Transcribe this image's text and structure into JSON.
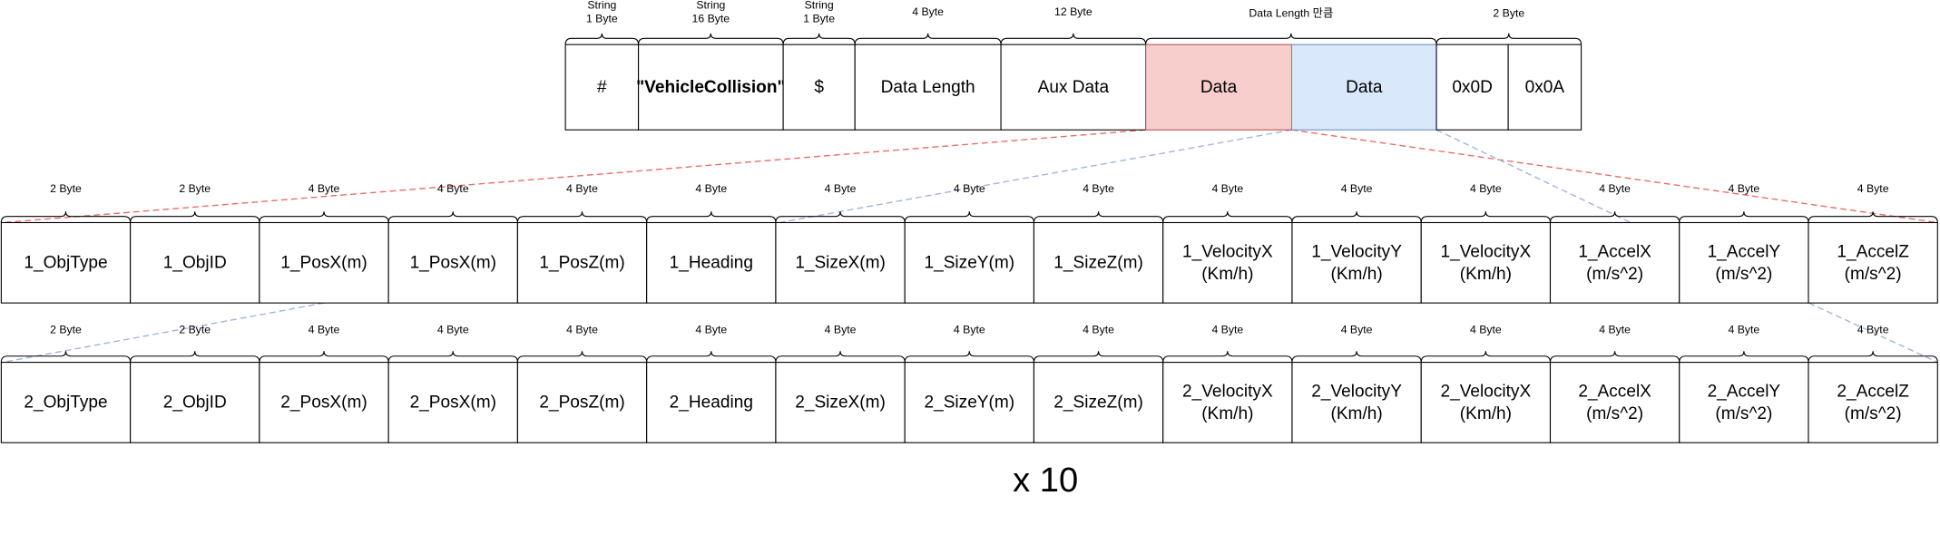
{
  "header": {
    "fields": [
      {
        "label": [
          "#"
        ],
        "size": [
          "String",
          "1 Byte"
        ]
      },
      {
        "label": [
          "\"VehicleCollision\""
        ],
        "size": [
          "String",
          "16 Byte"
        ]
      },
      {
        "label": [
          "$"
        ],
        "size": [
          "String",
          "1 Byte"
        ]
      },
      {
        "label": [
          "Data Length"
        ],
        "size": [
          "4 Byte"
        ]
      },
      {
        "label": [
          "Aux Data"
        ],
        "size": [
          "12 Byte"
        ]
      },
      {
        "label": [
          "Data"
        ]
      },
      {
        "label": [
          "Data"
        ]
      },
      {
        "label": [
          "0x0D"
        ]
      },
      {
        "label": [
          "0x0A"
        ]
      }
    ],
    "group_sizes": [
      {
        "text": "Data Length 만큼"
      },
      {
        "text": "2 Byte"
      }
    ]
  },
  "rows": [
    {
      "cells": [
        {
          "label": [
            "1_ObjType"
          ],
          "size": "2 Byte"
        },
        {
          "label": [
            "1_ObjID"
          ],
          "size": "2 Byte"
        },
        {
          "label": [
            "1_PosX(m)"
          ],
          "size": "4 Byte"
        },
        {
          "label": [
            "1_PosX(m)"
          ],
          "size": "4 Byte"
        },
        {
          "label": [
            "1_PosZ(m)"
          ],
          "size": "4 Byte"
        },
        {
          "label": [
            "1_Heading"
          ],
          "size": "4 Byte"
        },
        {
          "label": [
            "1_SizeX(m)"
          ],
          "size": "4 Byte"
        },
        {
          "label": [
            "1_SizeY(m)"
          ],
          "size": "4 Byte"
        },
        {
          "label": [
            "1_SizeZ(m)"
          ],
          "size": "4 Byte"
        },
        {
          "label": [
            "1_VelocityX",
            "(Km/h)"
          ],
          "size": "4 Byte"
        },
        {
          "label": [
            "1_VelocityY",
            "(Km/h)"
          ],
          "size": "4 Byte"
        },
        {
          "label": [
            "1_VelocityX",
            "(Km/h)"
          ],
          "size": "4 Byte"
        },
        {
          "label": [
            "1_AccelX",
            "(m/s^2)"
          ],
          "size": "4 Byte"
        },
        {
          "label": [
            "1_AccelY",
            "(m/s^2)"
          ],
          "size": "4 Byte"
        },
        {
          "label": [
            "1_AccelZ",
            "(m/s^2)"
          ],
          "size": "4 Byte"
        }
      ]
    },
    {
      "cells": [
        {
          "label": [
            "2_ObjType"
          ],
          "size": "2 Byte"
        },
        {
          "label": [
            "2_ObjID"
          ],
          "size": "2 Byte"
        },
        {
          "label": [
            "2_PosX(m)"
          ],
          "size": "4 Byte"
        },
        {
          "label": [
            "2_PosX(m)"
          ],
          "size": "4 Byte"
        },
        {
          "label": [
            "2_PosZ(m)"
          ],
          "size": "4 Byte"
        },
        {
          "label": [
            "2_Heading"
          ],
          "size": "4 Byte"
        },
        {
          "label": [
            "2_SizeX(m)"
          ],
          "size": "4 Byte"
        },
        {
          "label": [
            "2_SizeY(m)"
          ],
          "size": "4 Byte"
        },
        {
          "label": [
            "2_SizeZ(m)"
          ],
          "size": "4 Byte"
        },
        {
          "label": [
            "2_VelocityX",
            "(Km/h)"
          ],
          "size": "4 Byte"
        },
        {
          "label": [
            "2_VelocityY",
            "(Km/h)"
          ],
          "size": "4 Byte"
        },
        {
          "label": [
            "2_VelocityX",
            "(Km/h)"
          ],
          "size": "4 Byte"
        },
        {
          "label": [
            "2_AccelX",
            "(m/s^2)"
          ],
          "size": "4 Byte"
        },
        {
          "label": [
            "2_AccelY",
            "(m/s^2)"
          ],
          "size": "4 Byte"
        },
        {
          "label": [
            "2_AccelZ",
            "(m/s^2)"
          ],
          "size": "4 Byte"
        }
      ]
    }
  ],
  "multiplier": "x 10"
}
